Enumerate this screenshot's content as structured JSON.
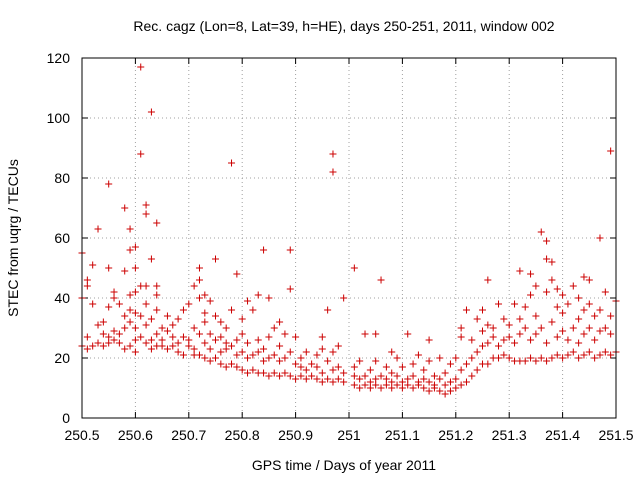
{
  "chart_data": {
    "type": "scatter",
    "title": "Rec. cagz (Lon=8, Lat=39, h=HE), days 250-251, 2011, window 002",
    "xlabel": "GPS time / Days of year 2011",
    "ylabel": "STEC from uqrg / TECUs",
    "xlim": [
      250.5,
      251.5
    ],
    "ylim": [
      0,
      120
    ],
    "xticks": [
      250.5,
      250.6,
      250.7,
      250.8,
      250.9,
      251,
      251.1,
      251.2,
      251.3,
      251.4,
      251.5
    ],
    "xtick_labels": [
      "250.5",
      "250.6",
      "250.7",
      "250.8",
      "250.9",
      "251",
      "251.1",
      "251.2",
      "251.3",
      "251.4",
      "251.5"
    ],
    "yticks": [
      0,
      20,
      40,
      60,
      80,
      100,
      120
    ],
    "ytick_labels": [
      "0",
      "20",
      "40",
      "60",
      "80",
      "100",
      "120"
    ],
    "grid": true,
    "marker": "+",
    "color": "#cc0000",
    "points": [
      [
        250.5,
        24
      ],
      [
        250.5,
        40
      ],
      [
        250.5,
        55
      ],
      [
        250.51,
        23
      ],
      [
        250.51,
        27
      ],
      [
        250.51,
        44
      ],
      [
        250.51,
        46
      ],
      [
        250.52,
        24
      ],
      [
        250.52,
        38
      ],
      [
        250.52,
        51
      ],
      [
        250.53,
        25
      ],
      [
        250.53,
        31
      ],
      [
        250.53,
        63
      ],
      [
        250.54,
        24
      ],
      [
        250.54,
        28
      ],
      [
        250.54,
        32
      ],
      [
        250.55,
        25
      ],
      [
        250.55,
        27
      ],
      [
        250.55,
        37
      ],
      [
        250.55,
        50
      ],
      [
        250.55,
        78
      ],
      [
        250.56,
        26
      ],
      [
        250.56,
        29
      ],
      [
        250.56,
        40
      ],
      [
        250.56,
        42
      ],
      [
        250.57,
        25
      ],
      [
        250.57,
        28
      ],
      [
        250.57,
        38
      ],
      [
        250.58,
        23
      ],
      [
        250.58,
        30
      ],
      [
        250.58,
        34
      ],
      [
        250.58,
        49
      ],
      [
        250.58,
        70
      ],
      [
        250.59,
        24
      ],
      [
        250.59,
        32
      ],
      [
        250.59,
        36
      ],
      [
        250.59,
        41
      ],
      [
        250.59,
        56
      ],
      [
        250.59,
        63
      ],
      [
        250.6,
        22
      ],
      [
        250.6,
        26
      ],
      [
        250.6,
        30
      ],
      [
        250.6,
        35
      ],
      [
        250.6,
        42
      ],
      [
        250.6,
        50
      ],
      [
        250.6,
        57
      ],
      [
        250.61,
        27
      ],
      [
        250.61,
        34
      ],
      [
        250.61,
        44
      ],
      [
        250.61,
        88
      ],
      [
        250.61,
        117
      ],
      [
        250.62,
        25
      ],
      [
        250.62,
        31
      ],
      [
        250.62,
        38
      ],
      [
        250.62,
        44
      ],
      [
        250.62,
        68
      ],
      [
        250.62,
        71
      ],
      [
        250.63,
        23
      ],
      [
        250.63,
        26
      ],
      [
        250.63,
        33
      ],
      [
        250.63,
        53
      ],
      [
        250.63,
        102
      ],
      [
        250.64,
        24
      ],
      [
        250.64,
        28
      ],
      [
        250.64,
        36
      ],
      [
        250.64,
        41
      ],
      [
        250.64,
        44
      ],
      [
        250.64,
        65
      ],
      [
        250.65,
        24
      ],
      [
        250.65,
        26
      ],
      [
        250.65,
        30
      ],
      [
        250.66,
        23
      ],
      [
        250.66,
        29
      ],
      [
        250.66,
        34
      ],
      [
        250.67,
        24
      ],
      [
        250.67,
        27
      ],
      [
        250.67,
        31
      ],
      [
        250.68,
        22
      ],
      [
        250.68,
        25
      ],
      [
        250.68,
        33
      ],
      [
        250.69,
        21
      ],
      [
        250.69,
        27
      ],
      [
        250.69,
        36
      ],
      [
        250.7,
        24
      ],
      [
        250.7,
        26
      ],
      [
        250.7,
        38
      ],
      [
        250.71,
        21
      ],
      [
        250.71,
        23
      ],
      [
        250.71,
        30
      ],
      [
        250.71,
        44
      ],
      [
        250.72,
        21
      ],
      [
        250.72,
        28
      ],
      [
        250.72,
        40
      ],
      [
        250.72,
        46
      ],
      [
        250.72,
        50
      ],
      [
        250.73,
        20
      ],
      [
        250.73,
        25
      ],
      [
        250.73,
        32
      ],
      [
        250.73,
        35
      ],
      [
        250.73,
        41
      ],
      [
        250.74,
        19
      ],
      [
        250.74,
        23
      ],
      [
        250.74,
        28
      ],
      [
        250.74,
        39
      ],
      [
        250.75,
        20
      ],
      [
        250.75,
        26
      ],
      [
        250.75,
        34
      ],
      [
        250.75,
        53
      ],
      [
        250.76,
        18
      ],
      [
        250.76,
        22
      ],
      [
        250.76,
        27
      ],
      [
        250.76,
        32
      ],
      [
        250.77,
        17
      ],
      [
        250.77,
        23
      ],
      [
        250.77,
        25
      ],
      [
        250.77,
        30
      ],
      [
        250.78,
        18
      ],
      [
        250.78,
        24
      ],
      [
        250.78,
        36
      ],
      [
        250.78,
        85
      ],
      [
        250.79,
        17
      ],
      [
        250.79,
        21
      ],
      [
        250.79,
        26
      ],
      [
        250.79,
        48
      ],
      [
        250.8,
        16
      ],
      [
        250.8,
        22
      ],
      [
        250.8,
        28
      ],
      [
        250.8,
        33
      ],
      [
        250.81,
        15
      ],
      [
        250.81,
        20
      ],
      [
        250.81,
        25
      ],
      [
        250.81,
        39
      ],
      [
        250.82,
        16
      ],
      [
        250.82,
        21
      ],
      [
        250.82,
        36
      ],
      [
        250.83,
        15
      ],
      [
        250.83,
        22
      ],
      [
        250.83,
        26
      ],
      [
        250.83,
        41
      ],
      [
        250.84,
        15
      ],
      [
        250.84,
        19
      ],
      [
        250.84,
        23
      ],
      [
        250.84,
        56
      ],
      [
        250.85,
        14
      ],
      [
        250.85,
        20
      ],
      [
        250.85,
        27
      ],
      [
        250.85,
        40
      ],
      [
        250.86,
        15
      ],
      [
        250.86,
        21
      ],
      [
        250.86,
        30
      ],
      [
        250.87,
        14
      ],
      [
        250.87,
        19
      ],
      [
        250.87,
        24
      ],
      [
        250.87,
        32
      ],
      [
        250.88,
        15
      ],
      [
        250.88,
        20
      ],
      [
        250.88,
        28
      ],
      [
        250.89,
        14
      ],
      [
        250.89,
        22
      ],
      [
        250.89,
        43
      ],
      [
        250.89,
        56
      ],
      [
        250.9,
        13
      ],
      [
        250.9,
        18
      ],
      [
        250.9,
        27
      ],
      [
        250.91,
        14
      ],
      [
        250.91,
        17
      ],
      [
        250.91,
        20
      ],
      [
        250.92,
        13
      ],
      [
        250.92,
        16
      ],
      [
        250.92,
        22
      ],
      [
        250.93,
        14
      ],
      [
        250.93,
        18
      ],
      [
        250.94,
        13
      ],
      [
        250.94,
        17
      ],
      [
        250.94,
        21
      ],
      [
        250.95,
        12
      ],
      [
        250.95,
        15
      ],
      [
        250.95,
        23
      ],
      [
        250.95,
        27
      ],
      [
        250.96,
        13
      ],
      [
        250.96,
        19
      ],
      [
        250.96,
        36
      ],
      [
        250.97,
        12
      ],
      [
        250.97,
        16
      ],
      [
        250.97,
        22
      ],
      [
        250.97,
        82
      ],
      [
        250.97,
        88
      ],
      [
        250.98,
        13
      ],
      [
        250.98,
        17
      ],
      [
        250.98,
        24
      ],
      [
        250.99,
        12
      ],
      [
        250.99,
        15
      ],
      [
        250.99,
        40
      ],
      [
        251.01,
        11
      ],
      [
        251.01,
        14
      ],
      [
        251.01,
        17
      ],
      [
        251.01,
        50
      ],
      [
        251.02,
        10
      ],
      [
        251.02,
        13
      ],
      [
        251.02,
        19
      ],
      [
        251.03,
        11
      ],
      [
        251.03,
        14
      ],
      [
        251.03,
        28
      ],
      [
        251.04,
        10
      ],
      [
        251.04,
        12
      ],
      [
        251.04,
        16
      ],
      [
        251.05,
        11
      ],
      [
        251.05,
        13
      ],
      [
        251.05,
        19
      ],
      [
        251.05,
        28
      ],
      [
        251.06,
        10
      ],
      [
        251.06,
        14
      ],
      [
        251.06,
        46
      ],
      [
        251.07,
        11
      ],
      [
        251.07,
        13
      ],
      [
        251.07,
        17
      ],
      [
        251.08,
        10
      ],
      [
        251.08,
        12
      ],
      [
        251.08,
        15
      ],
      [
        251.08,
        22
      ],
      [
        251.09,
        11
      ],
      [
        251.09,
        14
      ],
      [
        251.09,
        20
      ],
      [
        251.1,
        10
      ],
      [
        251.1,
        12
      ],
      [
        251.1,
        17
      ],
      [
        251.11,
        11
      ],
      [
        251.11,
        13
      ],
      [
        251.11,
        28
      ],
      [
        251.12,
        10
      ],
      [
        251.12,
        14
      ],
      [
        251.12,
        18
      ],
      [
        251.13,
        11
      ],
      [
        251.13,
        12
      ],
      [
        251.13,
        21
      ],
      [
        251.14,
        10
      ],
      [
        251.14,
        13
      ],
      [
        251.14,
        16
      ],
      [
        251.15,
        9
      ],
      [
        251.15,
        12
      ],
      [
        251.15,
        19
      ],
      [
        251.15,
        26
      ],
      [
        251.16,
        10
      ],
      [
        251.16,
        11
      ],
      [
        251.16,
        14
      ],
      [
        251.17,
        9
      ],
      [
        251.17,
        13
      ],
      [
        251.17,
        20
      ],
      [
        251.18,
        8
      ],
      [
        251.18,
        11
      ],
      [
        251.18,
        15
      ],
      [
        251.19,
        9
      ],
      [
        251.19,
        12
      ],
      [
        251.19,
        18
      ],
      [
        251.2,
        10
      ],
      [
        251.2,
        13
      ],
      [
        251.2,
        20
      ],
      [
        251.21,
        11
      ],
      [
        251.21,
        16
      ],
      [
        251.21,
        27
      ],
      [
        251.21,
        30
      ],
      [
        251.22,
        12
      ],
      [
        251.22,
        18
      ],
      [
        251.22,
        36
      ],
      [
        251.23,
        14
      ],
      [
        251.23,
        20
      ],
      [
        251.23,
        26
      ],
      [
        251.24,
        16
      ],
      [
        251.24,
        22
      ],
      [
        251.24,
        33
      ],
      [
        251.25,
        18
      ],
      [
        251.25,
        24
      ],
      [
        251.25,
        29
      ],
      [
        251.25,
        36
      ],
      [
        251.26,
        18
      ],
      [
        251.26,
        25
      ],
      [
        251.26,
        31
      ],
      [
        251.26,
        46
      ],
      [
        251.27,
        20
      ],
      [
        251.27,
        27
      ],
      [
        251.27,
        30
      ],
      [
        251.28,
        20
      ],
      [
        251.28,
        24
      ],
      [
        251.28,
        38
      ],
      [
        251.29,
        21
      ],
      [
        251.29,
        26
      ],
      [
        251.29,
        33
      ],
      [
        251.3,
        20
      ],
      [
        251.3,
        27
      ],
      [
        251.3,
        31
      ],
      [
        251.31,
        19
      ],
      [
        251.31,
        25
      ],
      [
        251.31,
        38
      ],
      [
        251.32,
        19
      ],
      [
        251.32,
        28
      ],
      [
        251.32,
        33
      ],
      [
        251.32,
        49
      ],
      [
        251.33,
        19
      ],
      [
        251.33,
        30
      ],
      [
        251.33,
        37
      ],
      [
        251.34,
        20
      ],
      [
        251.34,
        26
      ],
      [
        251.34,
        41
      ],
      [
        251.34,
        48
      ],
      [
        251.35,
        19
      ],
      [
        251.35,
        28
      ],
      [
        251.35,
        34
      ],
      [
        251.35,
        44
      ],
      [
        251.36,
        20
      ],
      [
        251.36,
        30
      ],
      [
        251.36,
        62
      ],
      [
        251.37,
        19
      ],
      [
        251.37,
        25
      ],
      [
        251.37,
        42
      ],
      [
        251.37,
        53
      ],
      [
        251.37,
        59
      ],
      [
        251.38,
        20
      ],
      [
        251.38,
        32
      ],
      [
        251.38,
        46
      ],
      [
        251.38,
        52
      ],
      [
        251.39,
        21
      ],
      [
        251.39,
        27
      ],
      [
        251.39,
        37
      ],
      [
        251.39,
        43
      ],
      [
        251.4,
        20
      ],
      [
        251.4,
        29
      ],
      [
        251.4,
        35
      ],
      [
        251.4,
        41
      ],
      [
        251.41,
        21
      ],
      [
        251.41,
        26
      ],
      [
        251.41,
        38
      ],
      [
        251.42,
        22
      ],
      [
        251.42,
        30
      ],
      [
        251.42,
        44
      ],
      [
        251.43,
        20
      ],
      [
        251.43,
        25
      ],
      [
        251.43,
        33
      ],
      [
        251.43,
        40
      ],
      [
        251.44,
        21
      ],
      [
        251.44,
        28
      ],
      [
        251.44,
        36
      ],
      [
        251.44,
        47
      ],
      [
        251.45,
        22
      ],
      [
        251.45,
        30
      ],
      [
        251.45,
        38
      ],
      [
        251.45,
        46
      ],
      [
        251.46,
        20
      ],
      [
        251.46,
        26
      ],
      [
        251.46,
        34
      ],
      [
        251.47,
        21
      ],
      [
        251.47,
        29
      ],
      [
        251.47,
        36
      ],
      [
        251.47,
        60
      ],
      [
        251.48,
        22
      ],
      [
        251.48,
        30
      ],
      [
        251.48,
        42
      ],
      [
        251.49,
        21
      ],
      [
        251.49,
        28
      ],
      [
        251.49,
        34
      ],
      [
        251.49,
        89
      ],
      [
        251.5,
        22
      ],
      [
        251.5,
        39
      ]
    ]
  }
}
